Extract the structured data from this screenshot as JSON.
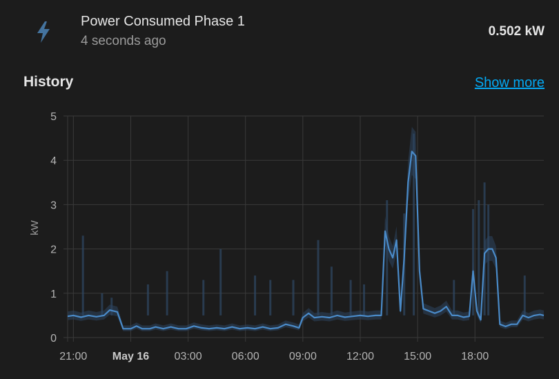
{
  "entity": {
    "name": "Power Consumed Phase 1",
    "last_changed": "4 seconds ago",
    "state": "0.502 kW",
    "icon": "flash-icon",
    "icon_color": "#44739e"
  },
  "history": {
    "title": "History",
    "show_more_label": "Show more"
  },
  "colors": {
    "accent": "#03a9f4",
    "line": "#4a8bc9",
    "band": "#2e4660",
    "grid": "#3a3a3a"
  },
  "chart_data": {
    "type": "line",
    "ylabel": "kW",
    "ylim": [
      0,
      5
    ],
    "yticks": [
      "0",
      "1",
      "2",
      "3",
      "4",
      "5"
    ],
    "x_ticks": [
      {
        "label": "21:00",
        "hour": 21,
        "major": false
      },
      {
        "label": "May 16",
        "hour": 24,
        "major": true
      },
      {
        "label": "03:00",
        "hour": 27,
        "major": false
      },
      {
        "label": "06:00",
        "hour": 30,
        "major": false
      },
      {
        "label": "09:00",
        "hour": 33,
        "major": false
      },
      {
        "label": "12:00",
        "hour": 36,
        "major": false
      },
      {
        "label": "15:00",
        "hour": 39,
        "major": false
      },
      {
        "label": "18:00",
        "hour": 42,
        "major": false
      }
    ],
    "xlim": [
      20.7,
      45.6
    ],
    "grid": true,
    "series": [
      {
        "points": [
          [
            20.7,
            0.48
          ],
          [
            21.0,
            0.5
          ],
          [
            21.4,
            0.46
          ],
          [
            21.8,
            0.5
          ],
          [
            22.2,
            0.47
          ],
          [
            22.6,
            0.5
          ],
          [
            22.9,
            0.62
          ],
          [
            23.3,
            0.58
          ],
          [
            23.6,
            0.2
          ],
          [
            24.0,
            0.2
          ],
          [
            24.3,
            0.26
          ],
          [
            24.6,
            0.2
          ],
          [
            25.0,
            0.2
          ],
          [
            25.3,
            0.24
          ],
          [
            25.7,
            0.2
          ],
          [
            26.1,
            0.24
          ],
          [
            26.5,
            0.2
          ],
          [
            26.9,
            0.2
          ],
          [
            27.3,
            0.26
          ],
          [
            27.7,
            0.22
          ],
          [
            28.1,
            0.2
          ],
          [
            28.5,
            0.22
          ],
          [
            28.9,
            0.2
          ],
          [
            29.3,
            0.24
          ],
          [
            29.7,
            0.2
          ],
          [
            30.1,
            0.22
          ],
          [
            30.5,
            0.2
          ],
          [
            30.9,
            0.24
          ],
          [
            31.3,
            0.2
          ],
          [
            31.7,
            0.22
          ],
          [
            32.1,
            0.3
          ],
          [
            32.5,
            0.26
          ],
          [
            32.8,
            0.22
          ],
          [
            33.0,
            0.45
          ],
          [
            33.3,
            0.55
          ],
          [
            33.6,
            0.45
          ],
          [
            34.0,
            0.47
          ],
          [
            34.4,
            0.45
          ],
          [
            34.8,
            0.5
          ],
          [
            35.2,
            0.46
          ],
          [
            35.6,
            0.48
          ],
          [
            36.0,
            0.5
          ],
          [
            36.4,
            0.48
          ],
          [
            36.8,
            0.5
          ],
          [
            37.1,
            0.5
          ],
          [
            37.3,
            2.4
          ],
          [
            37.5,
            2.0
          ],
          [
            37.7,
            1.8
          ],
          [
            37.9,
            2.2
          ],
          [
            38.1,
            0.6
          ],
          [
            38.3,
            1.8
          ],
          [
            38.5,
            3.5
          ],
          [
            38.7,
            4.2
          ],
          [
            38.9,
            4.1
          ],
          [
            39.1,
            1.5
          ],
          [
            39.3,
            0.65
          ],
          [
            39.6,
            0.6
          ],
          [
            39.9,
            0.55
          ],
          [
            40.2,
            0.6
          ],
          [
            40.5,
            0.7
          ],
          [
            40.8,
            0.5
          ],
          [
            41.1,
            0.5
          ],
          [
            41.4,
            0.46
          ],
          [
            41.7,
            0.48
          ],
          [
            41.9,
            1.5
          ],
          [
            42.1,
            0.6
          ],
          [
            42.3,
            0.4
          ],
          [
            42.5,
            1.9
          ],
          [
            42.7,
            2.0
          ],
          [
            42.9,
            2.0
          ],
          [
            43.1,
            1.8
          ],
          [
            43.3,
            0.3
          ],
          [
            43.6,
            0.25
          ],
          [
            43.9,
            0.3
          ],
          [
            44.2,
            0.3
          ],
          [
            44.5,
            0.5
          ],
          [
            44.8,
            0.45
          ],
          [
            45.1,
            0.5
          ],
          [
            45.4,
            0.52
          ],
          [
            45.6,
            0.5
          ]
        ]
      }
    ]
  }
}
